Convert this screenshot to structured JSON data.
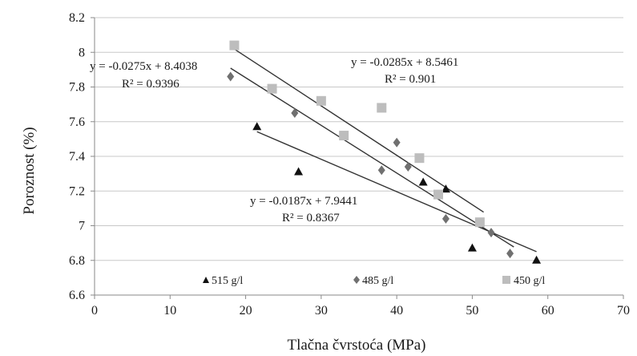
{
  "chart_data": {
    "type": "scatter",
    "xlabel": "Tlačna čvrstoća (MPa)",
    "ylabel": "Poroznost (%)",
    "xlim": [
      0,
      70
    ],
    "ylim": [
      6.6,
      8.2
    ],
    "x_ticks": [
      "0",
      "10",
      "20",
      "30",
      "40",
      "50",
      "60",
      "70"
    ],
    "y_ticks": [
      "6.6",
      "6.8",
      "7",
      "7.2",
      "7.4",
      "7.6",
      "7.8",
      "8",
      "8.2"
    ],
    "grid": "horizontal",
    "legend_position": "bottom",
    "series": [
      {
        "name": "515 g/l",
        "marker": "triangle",
        "color": "#111111",
        "points": [
          [
            21.5,
            7.57
          ],
          [
            27.0,
            7.31
          ],
          [
            43.5,
            7.25
          ],
          [
            46.5,
            7.21
          ],
          [
            50.0,
            6.87
          ],
          [
            58.5,
            6.8
          ]
        ],
        "trendline": {
          "x_range": [
            21.5,
            58.5
          ],
          "equation": "y = -0.0187x + 7.9441",
          "r2": "R² = 0.8367"
        }
      },
      {
        "name": "485 g/l",
        "marker": "diamond",
        "color": "#707070",
        "points": [
          [
            18.0,
            7.86
          ],
          [
            26.5,
            7.65
          ],
          [
            38.0,
            7.32
          ],
          [
            40.0,
            7.48
          ],
          [
            41.5,
            7.34
          ],
          [
            46.5,
            7.04
          ],
          [
            52.5,
            6.96
          ],
          [
            55.0,
            6.84
          ]
        ],
        "trendline": {
          "x_range": [
            18.0,
            55.5
          ],
          "equation": "y = -0.0275x + 8.4038",
          "r2": "R² = 0.9396"
        }
      },
      {
        "name": "450 g/l",
        "marker": "square",
        "color": "#bdbdbd",
        "points": [
          [
            18.5,
            8.04
          ],
          [
            23.5,
            7.79
          ],
          [
            30.0,
            7.72
          ],
          [
            33.0,
            7.52
          ],
          [
            38.0,
            7.68
          ],
          [
            43.0,
            7.39
          ],
          [
            45.5,
            7.18
          ],
          [
            51.0,
            7.02
          ]
        ],
        "trendline": {
          "x_range": [
            18.5,
            51.5
          ],
          "equation": "y = -0.0285x + 8.5461",
          "r2": "R² = 0.901"
        }
      }
    ]
  }
}
